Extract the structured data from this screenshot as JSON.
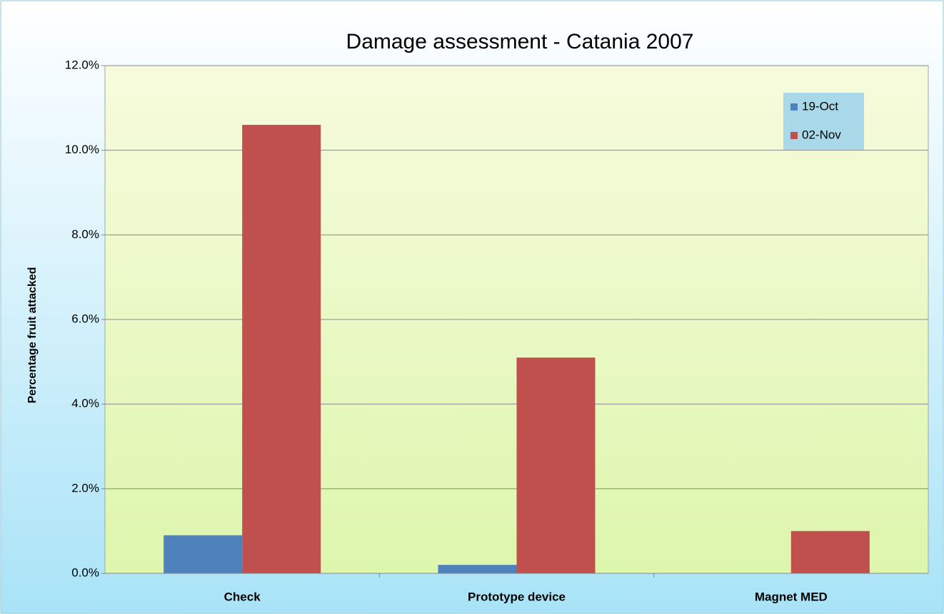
{
  "chart_data": {
    "type": "bar",
    "title": "Damage assessment - Catania 2007",
    "y_label": "Percentage fruit attacked",
    "categories": [
      "Check",
      "Prototype device",
      "Magnet MED"
    ],
    "series": [
      {
        "name": "19-Oct",
        "color": "#4f81bd",
        "values": [
          0.9,
          0.2,
          0
        ]
      },
      {
        "name": "02-Nov",
        "color": "#c0504d",
        "values": [
          10.6,
          5.1,
          1.0
        ]
      }
    ],
    "ylim": [
      0,
      12
    ],
    "yticks": [
      {
        "value": 0,
        "label": "0.0%"
      },
      {
        "value": 2,
        "label": "2.0%"
      },
      {
        "value": 4,
        "label": "4.0%"
      },
      {
        "value": 6,
        "label": "6.0%"
      },
      {
        "value": 8,
        "label": "8.0%"
      },
      {
        "value": 10,
        "label": "10.0%"
      },
      {
        "value": 12,
        "label": "12.0%"
      }
    ],
    "grid": true,
    "legend": "upper right"
  }
}
